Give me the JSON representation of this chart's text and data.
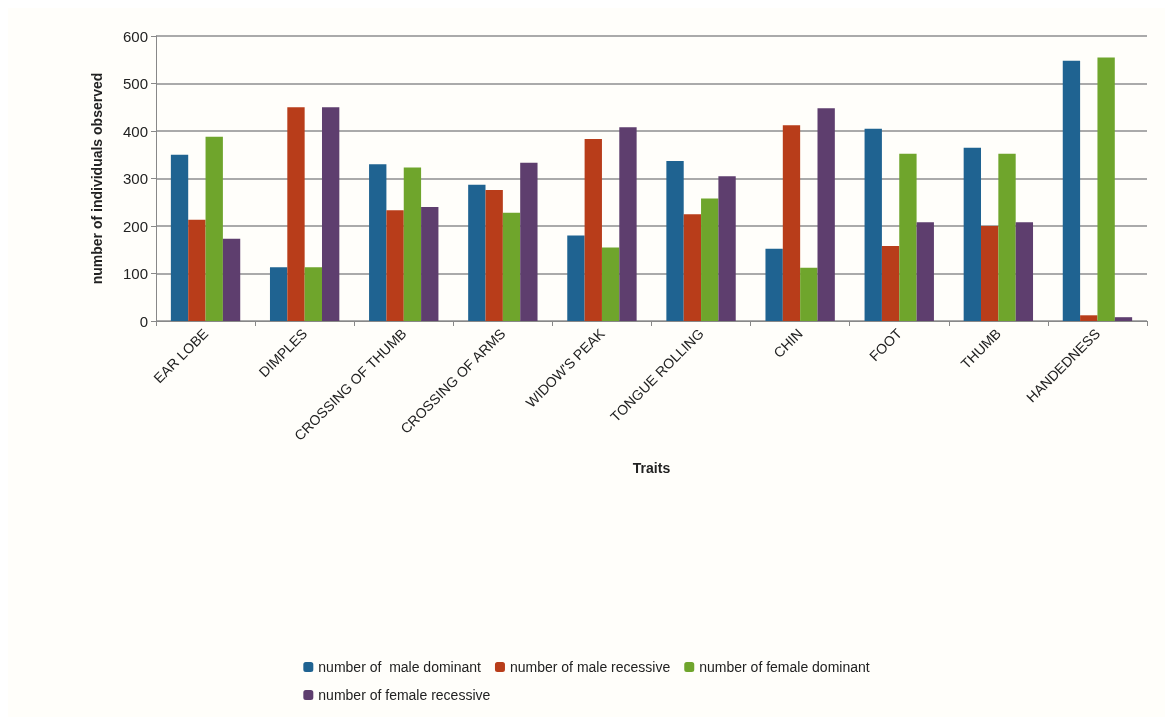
{
  "chart_data": {
    "type": "bar",
    "xlabel": "Traits",
    "ylabel": "number of individuals observed",
    "categories": [
      "EAR LOBE",
      "DIMPLES",
      "CROSSING OF THUMB",
      "CROSSING OF ARMS",
      "WIDOW'S PEAK",
      "TONGUE ROLLING",
      "CHIN",
      "FOOT",
      "THUMB",
      "HANDEDNESS"
    ],
    "series": [
      {
        "name": "number of  male dominant",
        "color": "#1f6391",
        "values": [
          350,
          113,
          330,
          287,
          180,
          337,
          152,
          405,
          365,
          548
        ]
      },
      {
        "name": "number of male recessive",
        "color": "#b83d1a",
        "values": [
          213,
          450,
          233,
          276,
          383,
          225,
          412,
          158,
          200,
          12
        ]
      },
      {
        "name": "number of female dominant",
        "color": "#6fa52c",
        "values": [
          388,
          113,
          323,
          228,
          155,
          258,
          112,
          352,
          352,
          555
        ]
      },
      {
        "name": "number of female recessive",
        "color": "#5e3e6e",
        "values": [
          173,
          450,
          240,
          333,
          408,
          305,
          448,
          208,
          208,
          8
        ]
      }
    ],
    "ylim": [
      0,
      600
    ],
    "yticks": [
      0,
      100,
      200,
      300,
      400,
      500,
      600
    ],
    "grid": "y",
    "legend": "bottom"
  }
}
